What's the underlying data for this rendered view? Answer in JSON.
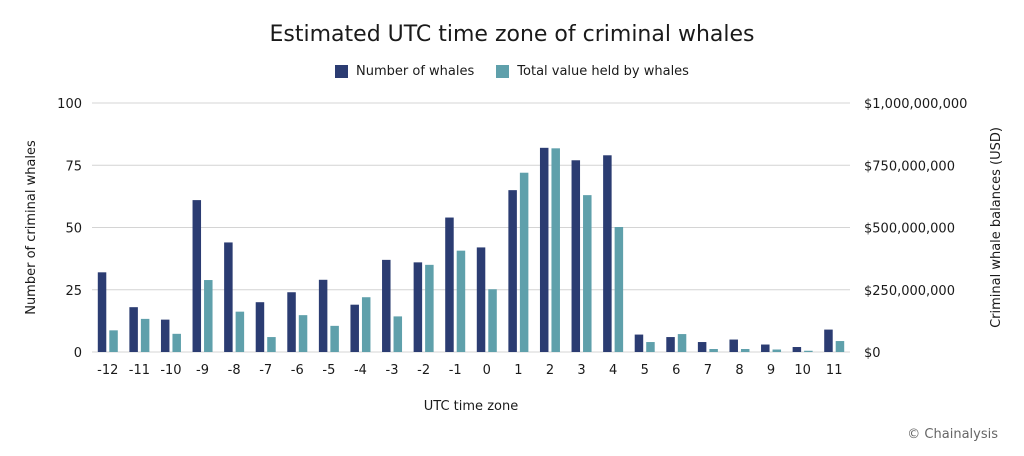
{
  "chart_data": {
    "type": "bar",
    "title": "Estimated UTC time zone of criminal whales",
    "xlabel": "UTC time zone",
    "ylabel": "Number of criminal whales",
    "y2label": "Criminal whale balances (USD)",
    "ylim": [
      0,
      100
    ],
    "y2lim": [
      0,
      1000000000
    ],
    "yticks": [
      "0",
      "25",
      "50",
      "75",
      "100"
    ],
    "y2ticks": [
      "$0",
      "$250,000,000",
      "$500,000,000",
      "$750,000,000",
      "$1,000,000,000"
    ],
    "categories": [
      "-12",
      "-11",
      "-10",
      "-9",
      "-8",
      "-7",
      "-6",
      "-5",
      "-4",
      "-3",
      "-2",
      "-1",
      "0",
      "1",
      "2",
      "3",
      "4",
      "5",
      "6",
      "7",
      "8",
      "9",
      "10",
      "11"
    ],
    "series": [
      {
        "name": "Number of whales",
        "axis": "left",
        "color": "#2b3c72",
        "values": [
          32,
          18,
          13,
          61,
          44,
          20,
          24,
          29,
          19,
          37,
          36,
          54,
          42,
          65,
          82,
          77,
          79,
          7,
          6,
          4,
          5,
          3,
          2,
          9
        ]
      },
      {
        "name": "Total value held by whales",
        "axis": "right",
        "color": "#5fa0ab",
        "values": [
          87000000,
          133000000,
          73000000,
          289000000,
          162000000,
          60000000,
          148000000,
          105000000,
          220000000,
          143000000,
          350000000,
          407000000,
          252000000,
          720000000,
          818000000,
          630000000,
          502000000,
          40000000,
          72000000,
          12000000,
          12000000,
          10000000,
          5000000,
          44000000
        ]
      }
    ]
  },
  "credit": "© Chainalysis"
}
